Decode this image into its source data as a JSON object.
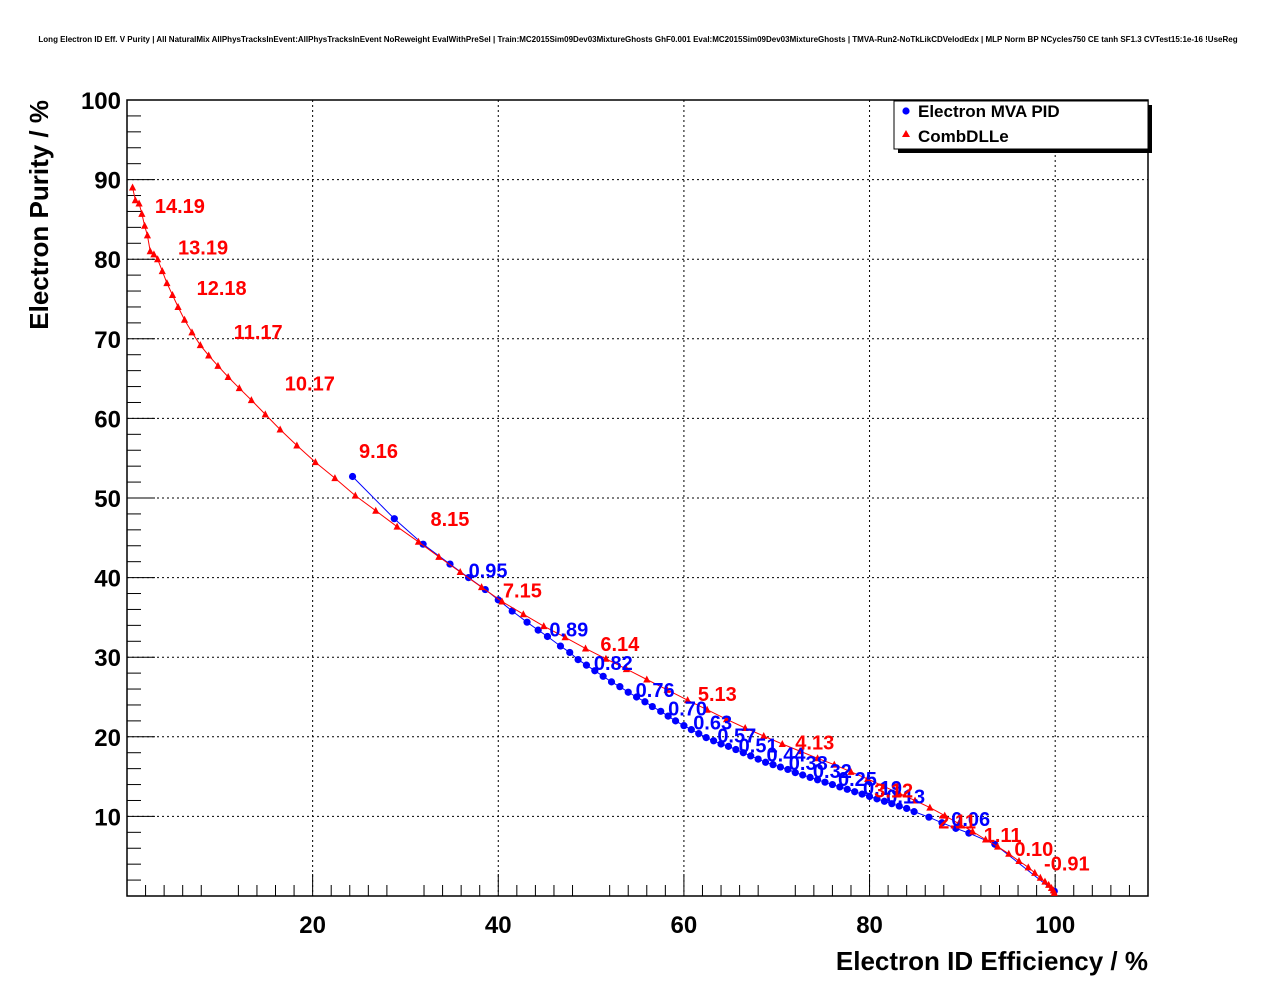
{
  "chart_data": {
    "type": "line",
    "title": "Long Electron ID Eff. V Purity | All NaturalMix AllPhysTracksInEvent:AllPhysTracksInEvent NoReweight EvalWithPreSel | Train:MC2015Sim09Dev03MixtureGhosts GhF0.001 Eval:MC2015Sim09Dev03MixtureGhosts | TMVA-Run2-NoTkLikCDVelodEdx | MLP Norm BP NCycles750 CE tanh SF1.3 CVTest15:1e-16 !UseReg",
    "xlabel": "Electron ID Efficiency / %",
    "ylabel": "Electron Purity / %",
    "xlim": [
      0,
      110
    ],
    "ylim": [
      0,
      100
    ],
    "xticks": [
      "20",
      "40",
      "60",
      "80",
      "100"
    ],
    "yticks": [
      "10",
      "20",
      "30",
      "40",
      "50",
      "60",
      "70",
      "80",
      "90",
      "100"
    ],
    "grid": true,
    "legend_position": "top-right",
    "series": [
      {
        "name": "Electron MVA PID",
        "color": "#0000ff",
        "marker": "circle",
        "x": [
          24.3,
          28.8,
          31.9,
          34.8,
          36.8,
          38.6,
          40.0,
          41.5,
          43.1,
          44.3,
          45.3,
          46.7,
          47.7,
          48.6,
          49.5,
          50.4,
          51.3,
          52.2,
          53.1,
          54.0,
          54.9,
          55.8,
          56.6,
          57.5,
          58.3,
          59.1,
          60.0,
          60.8,
          61.6,
          62.4,
          63.2,
          64.0,
          64.8,
          65.6,
          66.4,
          67.2,
          68.0,
          68.8,
          69.6,
          70.4,
          71.2,
          72.0,
          72.8,
          73.6,
          74.4,
          75.2,
          76.0,
          76.8,
          77.6,
          78.4,
          79.2,
          80.0,
          80.8,
          81.6,
          82.4,
          83.2,
          84.0,
          84.8,
          86.4,
          87.8,
          89.3,
          90.7,
          93.5,
          99.9
        ],
        "y": [
          52.7,
          47.4,
          44.2,
          41.7,
          40.0,
          38.5,
          37.2,
          35.8,
          34.4,
          33.4,
          32.6,
          31.4,
          30.6,
          29.7,
          29.0,
          28.3,
          27.6,
          26.9,
          26.3,
          25.6,
          25.0,
          24.4,
          23.8,
          23.2,
          22.6,
          22.0,
          21.4,
          20.9,
          20.4,
          19.9,
          19.5,
          19.1,
          18.8,
          18.4,
          18.0,
          17.6,
          17.2,
          16.8,
          16.5,
          16.2,
          15.9,
          15.5,
          15.2,
          14.9,
          14.6,
          14.3,
          14.0,
          13.7,
          13.4,
          13.1,
          12.8,
          12.5,
          12.2,
          11.9,
          11.6,
          11.3,
          11.0,
          10.6,
          9.9,
          9.2,
          8.5,
          7.9,
          6.5,
          0.6
        ],
        "labels": [
          {
            "text": "0.95",
            "x": 36.8,
            "y": 40.0
          },
          {
            "text": "0.89",
            "x": 45.5,
            "y": 32.6
          },
          {
            "text": "0.82",
            "x": 50.3,
            "y": 28.4
          },
          {
            "text": "0.76",
            "x": 54.8,
            "y": 25.0
          },
          {
            "text": "0.70",
            "x": 58.3,
            "y": 22.7
          },
          {
            "text": "0.63",
            "x": 61.0,
            "y": 20.9
          },
          {
            "text": "0.57",
            "x": 63.6,
            "y": 19.3
          },
          {
            "text": "0.51",
            "x": 65.9,
            "y": 18.0
          },
          {
            "text": "0.44",
            "x": 68.9,
            "y": 16.9
          },
          {
            "text": "0.38",
            "x": 71.3,
            "y": 15.8
          },
          {
            "text": "0.32",
            "x": 73.9,
            "y": 14.8
          },
          {
            "text": "0.25",
            "x": 76.6,
            "y": 13.8
          },
          {
            "text": "0.19",
            "x": 79.3,
            "y": 12.7
          },
          {
            "text": "0.13",
            "x": 81.8,
            "y": 11.6
          },
          {
            "text": "0.06",
            "x": 88.8,
            "y": 8.8
          }
        ]
      },
      {
        "name": "CombDLLe",
        "color": "#ff0000",
        "marker": "triangle",
        "x": [
          0.6,
          0.9,
          1.3,
          1.6,
          1.9,
          2.2,
          2.5,
          2.9,
          3.3,
          3.8,
          4.3,
          4.9,
          5.5,
          6.2,
          7.0,
          7.9,
          8.8,
          9.8,
          10.9,
          12.1,
          13.4,
          14.9,
          16.5,
          18.3,
          20.3,
          22.4,
          24.6,
          26.8,
          29.1,
          31.4,
          33.6,
          35.9,
          38.2,
          40.4,
          42.7,
          44.9,
          47.2,
          49.4,
          51.6,
          53.8,
          56.0,
          58.2,
          60.4,
          62.5,
          64.6,
          66.6,
          68.6,
          70.6,
          72.5,
          74.4,
          76.2,
          78.0,
          79.8,
          81.5,
          83.2,
          84.9,
          86.5,
          88.1,
          89.6,
          91.1,
          92.5,
          93.8,
          95.0,
          96.1,
          97.1,
          97.8,
          98.4,
          98.9,
          99.3,
          99.6,
          99.8,
          99.9
        ],
        "y": [
          89.0,
          87.4,
          87.0,
          85.7,
          84.2,
          83.0,
          81.0,
          80.6,
          80.0,
          78.5,
          77.0,
          75.5,
          74.0,
          72.4,
          70.8,
          69.2,
          67.9,
          66.6,
          65.2,
          63.8,
          62.3,
          60.5,
          58.6,
          56.6,
          54.5,
          52.5,
          50.3,
          48.4,
          46.4,
          44.5,
          42.6,
          40.7,
          38.8,
          37.0,
          35.4,
          33.9,
          32.5,
          31.1,
          29.8,
          28.5,
          27.2,
          25.9,
          24.6,
          23.4,
          22.2,
          21.1,
          20.1,
          19.1,
          18.2,
          17.3,
          16.5,
          15.6,
          14.7,
          13.8,
          12.9,
          12.0,
          11.1,
          10.1,
          9.1,
          8.1,
          7.1,
          6.2,
          5.3,
          4.4,
          3.6,
          2.9,
          2.3,
          1.8,
          1.4,
          1.0,
          0.7,
          0.4
        ],
        "labels": [
          {
            "text": "14.19",
            "x": 3.0,
            "y": 85.8
          },
          {
            "text": "13.19",
            "x": 5.5,
            "y": 80.6
          },
          {
            "text": "12.18",
            "x": 7.5,
            "y": 75.5
          },
          {
            "text": "11.17",
            "x": 11.5,
            "y": 70.0
          },
          {
            "text": "10.17",
            "x": 17.0,
            "y": 63.5
          },
          {
            "text": "9.16",
            "x": 25.0,
            "y": 55.0
          },
          {
            "text": "8.15",
            "x": 32.7,
            "y": 46.5
          },
          {
            "text": "7.15",
            "x": 40.5,
            "y": 37.5
          },
          {
            "text": "6.14",
            "x": 51.0,
            "y": 30.8
          },
          {
            "text": "5.13",
            "x": 61.5,
            "y": 24.5
          },
          {
            "text": "4.13",
            "x": 72.0,
            "y": 18.4
          },
          {
            "text": "3.12",
            "x": 80.5,
            "y": 12.4
          },
          {
            "text": "2.11",
            "x": 87.4,
            "y": 8.5
          },
          {
            "text": "1.11",
            "x": 92.3,
            "y": 6.8
          },
          {
            "text": "0.10",
            "x": 95.6,
            "y": 5.0
          },
          {
            "text": "-0.91",
            "x": 98.8,
            "y": 3.2
          }
        ]
      }
    ]
  }
}
